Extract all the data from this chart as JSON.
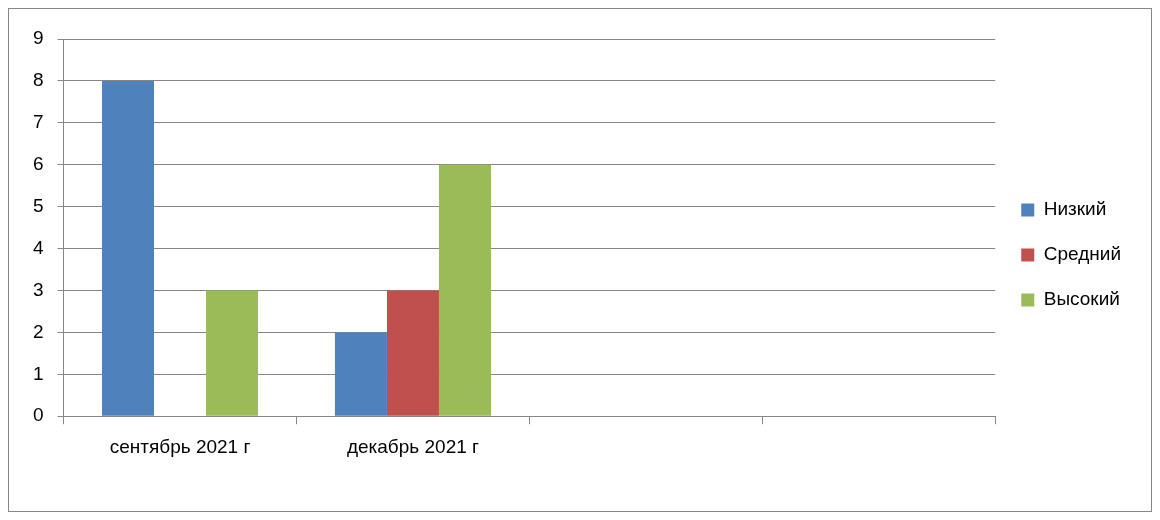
{
  "chart_data": {
    "type": "bar",
    "categories": [
      "сентябрь 2021 г",
      "декабрь 2021 г",
      null,
      null
    ],
    "series": [
      {
        "name": "Низкий",
        "color": "#4f81bd",
        "values": [
          8,
          2,
          null,
          null
        ]
      },
      {
        "name": "Средний",
        "color": "#c0504d",
        "values": [
          0,
          3,
          null,
          null
        ]
      },
      {
        "name": "Высокий",
        "color": "#9bbb59",
        "values": [
          3,
          6,
          null,
          null
        ]
      }
    ],
    "ylim": [
      0,
      9
    ],
    "yticks": [
      0,
      1,
      2,
      3,
      4,
      5,
      6,
      7,
      8,
      9
    ],
    "grid": "y",
    "legend": "right"
  }
}
